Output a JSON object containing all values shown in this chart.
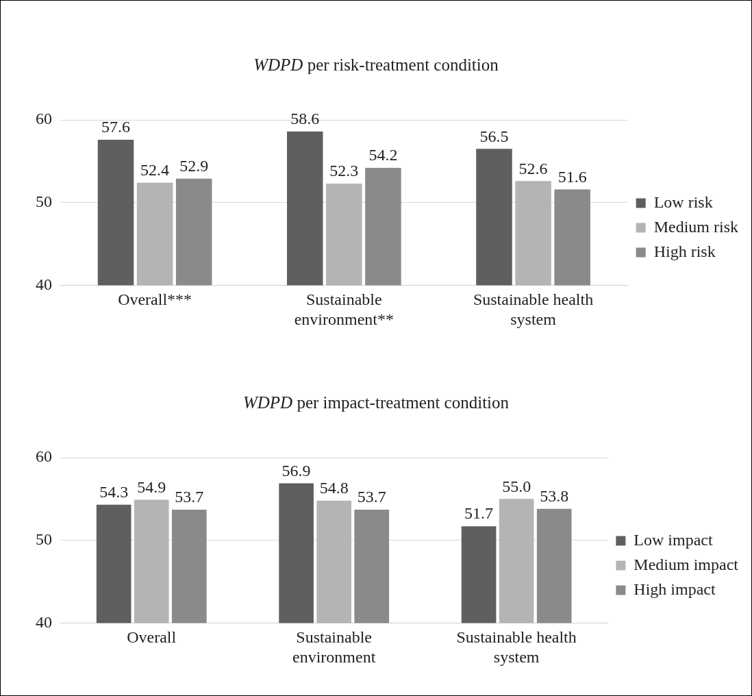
{
  "chart_data": [
    {
      "type": "bar",
      "title": "WDPD per risk-treatment condition",
      "categories": [
        "Overall***",
        "Sustainable environment**",
        "Sustainable health system"
      ],
      "series": [
        {
          "name": "Low risk",
          "color": "#5f5f5f",
          "values": [
            57.6,
            58.6,
            56.5
          ]
        },
        {
          "name": "Medium risk",
          "color": "#b4b4b4",
          "values": [
            52.4,
            52.3,
            52.6
          ]
        },
        {
          "name": "High risk",
          "color": "#8a8a8a",
          "values": [
            52.9,
            54.2,
            51.6
          ]
        }
      ],
      "ylim": [
        40,
        60
      ],
      "yticks": [
        40,
        50,
        60
      ],
      "grid": "y",
      "legend": "right",
      "data_labels": true
    },
    {
      "type": "bar",
      "title": "WDPD per impact-treatment condition",
      "categories": [
        "Overall",
        "Sustainable environment",
        "Sustainable health system"
      ],
      "series": [
        {
          "name": "Low impact",
          "color": "#5f5f5f",
          "values": [
            54.3,
            56.9,
            51.7
          ],
          "value_labels": [
            "54.3",
            "56.9",
            "51.7"
          ]
        },
        {
          "name": "Medium impact",
          "color": "#b4b4b4",
          "values": [
            54.9,
            54.8,
            55.0
          ],
          "value_labels": [
            "54.9",
            "54.8",
            "55.0"
          ]
        },
        {
          "name": "High impact",
          "color": "#8a8a8a",
          "values": [
            53.7,
            53.7,
            53.8
          ],
          "value_labels": [
            "53.7",
            "53.7",
            "53.8"
          ]
        }
      ],
      "ylim": [
        40,
        60
      ],
      "yticks": [
        40,
        50,
        60
      ],
      "grid": "y",
      "legend": "right"
    }
  ]
}
